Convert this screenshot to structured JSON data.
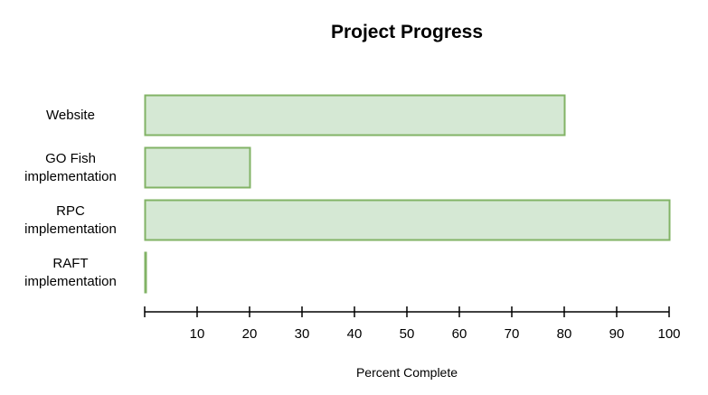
{
  "chart_data": {
    "type": "bar",
    "orientation": "horizontal",
    "title": "Project Progress",
    "xlabel": "Percent Complete",
    "ylabel": "",
    "categories": [
      "Website",
      "GO Fish implementation",
      "RPC implementation",
      "RAFT implementation"
    ],
    "category_lines": [
      [
        "Website"
      ],
      [
        "GO Fish",
        "implementation"
      ],
      [
        "RPC",
        "implementation"
      ],
      [
        "RAFT",
        "implementation"
      ]
    ],
    "values": [
      80,
      20,
      100,
      0
    ],
    "xlim": [
      0,
      100
    ],
    "xticks": [
      10,
      20,
      30,
      40,
      50,
      60,
      70,
      80,
      90,
      100
    ],
    "grid": false,
    "legend": "none",
    "colors": {
      "bar_fill": "#d5e8d4",
      "bar_stroke": "#82b366",
      "axis": "#000000",
      "text": "#000000"
    }
  }
}
